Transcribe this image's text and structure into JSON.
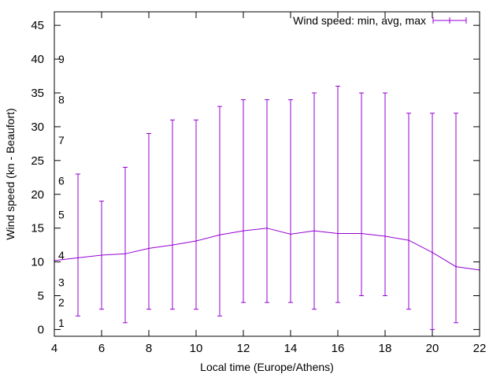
{
  "chart_data": {
    "type": "line",
    "title": "",
    "xlabel": "Local time (Europe/Athens)",
    "ylabel": "Wind speed (kn - Beaufort)",
    "xlim": [
      4,
      22
    ],
    "ylim": [
      -1,
      47
    ],
    "grid": false,
    "legend_position": "top-right",
    "colors": {
      "series": "#9400d3",
      "axis": "#000000",
      "background": "#ffffff"
    },
    "x_ticks": [
      4,
      6,
      8,
      10,
      12,
      14,
      16,
      18,
      20,
      22
    ],
    "x_tick_labels": [
      "4",
      "6",
      "8",
      "10",
      "12",
      "14",
      "16",
      "18",
      "20",
      "22"
    ],
    "y_ticks": [
      0,
      5,
      10,
      15,
      20,
      25,
      30,
      35,
      40,
      45
    ],
    "y_tick_labels": [
      "0",
      "5",
      "10",
      "15",
      "20",
      "25",
      "30",
      "35",
      "40",
      "45"
    ],
    "beaufort_labels": [
      {
        "text": "1",
        "y": 1
      },
      {
        "text": "2",
        "y": 4
      },
      {
        "text": "3",
        "y": 7
      },
      {
        "text": "4",
        "y": 11
      },
      {
        "text": "5",
        "y": 17
      },
      {
        "text": "6",
        "y": 22
      },
      {
        "text": "7",
        "y": 28
      },
      {
        "text": "8",
        "y": 34
      },
      {
        "text": "9",
        "y": 40
      }
    ],
    "series": [
      {
        "name": "Wind speed: min, avg, max",
        "x": [
          4,
          5,
          6,
          7,
          8,
          9,
          10,
          11,
          12,
          13,
          14,
          15,
          16,
          17,
          18,
          19,
          20,
          21,
          22
        ],
        "avg": [
          10.2,
          10.6,
          11,
          11.2,
          12,
          12.5,
          13.1,
          14,
          14.6,
          15,
          14.1,
          14.6,
          14.2,
          14.2,
          13.8,
          13.2,
          11.4,
          9.3,
          8.8
        ],
        "min": [
          null,
          2,
          3,
          1,
          3,
          3,
          3,
          2,
          4,
          4,
          4,
          3,
          4,
          5,
          5,
          3,
          0,
          1,
          null
        ],
        "max": [
          null,
          23,
          19,
          24,
          29,
          31,
          31,
          33,
          34,
          34,
          34,
          35,
          36,
          35,
          35,
          32,
          32,
          32,
          null
        ]
      }
    ]
  }
}
